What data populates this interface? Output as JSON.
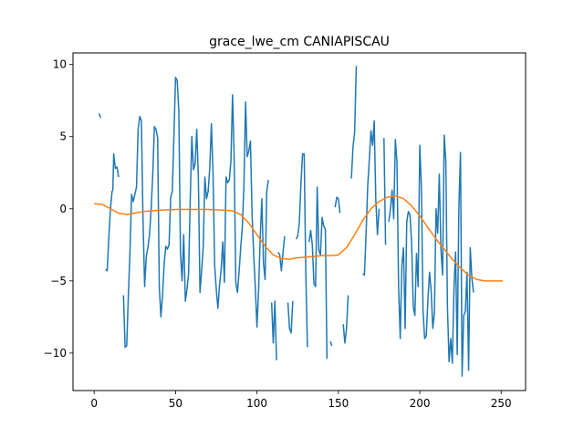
{
  "chart_data": {
    "type": "line",
    "title": "grace_lwe_cm CANIAPISCAU",
    "xlabel": "",
    "ylabel": "",
    "xlim": [
      -13,
      265
    ],
    "ylim": [
      -12.6,
      10.8
    ],
    "xticks": [
      0,
      50,
      100,
      150,
      200,
      250
    ],
    "yticks": [
      -10,
      -5,
      0,
      5,
      10
    ],
    "grid": false,
    "legend": "none",
    "series": [
      {
        "color": "#1f77b4",
        "points": [
          [
            3,
            6.6
          ],
          [
            4,
            6.3
          ],
          null,
          [
            7,
            -4.2
          ],
          [
            8,
            -4.3
          ],
          [
            9,
            -2.0
          ],
          [
            10,
            0.0
          ],
          [
            11,
            1.2
          ],
          [
            11.5,
            1.3
          ],
          [
            12,
            3.8
          ],
          [
            13,
            2.8
          ],
          [
            14,
            2.9
          ],
          [
            15,
            2.2
          ],
          null,
          [
            18,
            -6.0
          ],
          [
            19,
            -9.6
          ],
          [
            20,
            -9.5
          ],
          [
            21,
            -6.0
          ],
          [
            22,
            -3.0
          ],
          [
            23,
            1.0
          ],
          [
            24,
            0.5
          ],
          [
            25,
            1.0
          ],
          [
            26,
            1.5
          ],
          [
            27,
            5.5
          ],
          [
            28,
            6.4
          ],
          [
            29,
            6.1
          ],
          [
            30,
            -0.7
          ],
          [
            31,
            -5.4
          ],
          [
            32,
            -3.3
          ],
          [
            33,
            -2.7
          ],
          [
            34,
            -1.8
          ],
          [
            35,
            0.0
          ],
          [
            36,
            2.4
          ],
          [
            37,
            5.7
          ],
          [
            38,
            5.5
          ],
          [
            39,
            4.9
          ],
          [
            40,
            -5.4
          ],
          [
            41,
            -7.5
          ],
          [
            42,
            -6.0
          ],
          [
            43,
            -3.8
          ],
          [
            44,
            -2.6
          ],
          [
            45,
            -2.8
          ],
          [
            46,
            -2.5
          ],
          [
            47,
            0.8
          ],
          [
            48,
            1.2
          ],
          [
            49,
            5.1
          ],
          [
            50,
            9.1
          ],
          [
            51,
            8.9
          ],
          [
            52,
            6.8
          ],
          [
            53,
            -3.0
          ],
          [
            54,
            -5.0
          ],
          [
            55,
            -1.8
          ],
          [
            56,
            -6.4
          ],
          [
            57,
            -5.6
          ],
          [
            58,
            -4.5
          ],
          [
            59,
            0.6
          ],
          [
            60,
            5.0
          ],
          [
            61,
            2.7
          ],
          [
            62,
            3.1
          ],
          [
            63,
            5.5
          ],
          [
            64,
            2.2
          ],
          [
            65,
            -5.8
          ],
          [
            66,
            -4.3
          ],
          [
            67,
            -2.6
          ],
          [
            68,
            2.2
          ],
          [
            69,
            0.7
          ],
          [
            70,
            1.2
          ],
          [
            71,
            2.8
          ],
          [
            72,
            5.9
          ],
          [
            73,
            2.5
          ],
          [
            74,
            -3.9
          ],
          [
            75,
            -5.6
          ],
          [
            76,
            -6.9
          ],
          [
            77,
            -5.3
          ],
          [
            78,
            -4.2
          ],
          [
            79,
            -2.3
          ],
          [
            80,
            -5.1
          ],
          [
            81,
            2.2
          ],
          [
            82,
            1.8
          ],
          [
            83,
            2.0
          ],
          [
            84,
            3.3
          ],
          [
            85,
            7.9
          ],
          [
            86,
            3.5
          ],
          [
            87,
            -5.1
          ],
          [
            88,
            -5.8
          ],
          [
            89,
            -4.4
          ],
          [
            90,
            -2.7
          ],
          [
            91,
            -1.3
          ],
          [
            92,
            1.7
          ],
          [
            93,
            7.4
          ],
          [
            94,
            3.6
          ],
          [
            95,
            4.0
          ],
          [
            96,
            4.7
          ],
          [
            97,
            -0.4
          ],
          [
            98,
            -3.2
          ],
          [
            99,
            -5.5
          ],
          [
            100,
            -8.2
          ],
          [
            101,
            -5.6
          ],
          [
            102,
            -2.0
          ],
          [
            103,
            0.7
          ],
          [
            104,
            -3.8
          ],
          [
            105,
            -4.9
          ],
          [
            106,
            1.2
          ],
          [
            107,
            2.0
          ],
          null,
          [
            109,
            -6.5
          ],
          [
            110,
            -9.3
          ],
          [
            111,
            -6.4
          ],
          [
            112,
            -10.5
          ],
          null,
          [
            113,
            -3.0
          ],
          [
            114,
            -3.2
          ],
          [
            115,
            -4.3
          ],
          [
            116,
            -3.0
          ],
          [
            117,
            -1.9
          ],
          null,
          [
            119,
            -6.5
          ],
          [
            120,
            -8.3
          ],
          [
            121,
            -8.6
          ],
          [
            122,
            -6.4
          ],
          null,
          [
            124,
            -2.1
          ],
          [
            125,
            -1.9
          ],
          [
            126,
            -1.0
          ],
          [
            127,
            1.7
          ],
          [
            128,
            3.8
          ],
          [
            129,
            3.8
          ],
          [
            130,
            -4.5
          ],
          [
            131,
            -9.6
          ],
          null,
          [
            132,
            -2.3
          ],
          [
            133,
            -1.5
          ],
          [
            134,
            -2.5
          ],
          [
            135,
            -5.2
          ],
          [
            136,
            -5.4
          ],
          [
            137,
            1.5
          ],
          [
            138,
            -2.9
          ],
          [
            139,
            -3.2
          ],
          [
            140,
            -0.6
          ],
          [
            141,
            -1.2
          ],
          [
            142,
            -1.4
          ],
          [
            143,
            -10.4
          ],
          null,
          [
            145,
            -9.2
          ],
          [
            146,
            -9.5
          ],
          null,
          [
            148,
            0.1
          ],
          [
            149,
            0.8
          ],
          [
            150,
            0.7
          ],
          [
            151,
            -0.3
          ],
          null,
          [
            153,
            -8.0
          ],
          [
            154,
            -9.3
          ],
          [
            155,
            -8.3
          ],
          [
            156,
            -6.0
          ],
          null,
          [
            158,
            2.1
          ],
          [
            159,
            4.3
          ],
          [
            160,
            5.3
          ],
          [
            161,
            9.9
          ],
          null,
          [
            165,
            -4.5
          ],
          [
            166,
            -4.6
          ],
          [
            167,
            -1.8
          ],
          [
            168,
            1.5
          ],
          [
            169,
            3.4
          ],
          [
            170,
            5.4
          ],
          [
            171,
            4.4
          ],
          [
            172,
            6.1
          ],
          [
            173,
            0.6
          ],
          [
            174,
            -1.8
          ],
          [
            175,
            0.0
          ],
          null,
          [
            178,
            4.9
          ],
          [
            179,
            -2.5
          ],
          null,
          [
            181,
            -0.9
          ],
          [
            182,
            0.0
          ],
          [
            183,
            1.3
          ],
          [
            184,
            -0.7
          ],
          [
            185,
            4.8
          ],
          [
            186,
            3.2
          ],
          [
            187,
            -5.4
          ],
          [
            188,
            -9.0
          ],
          [
            189,
            -3.9
          ],
          [
            190,
            -2.7
          ],
          [
            191,
            -8.3
          ],
          [
            192,
            -0.9
          ],
          [
            193,
            -0.2
          ],
          [
            194,
            -0.4
          ],
          [
            195,
            -2.4
          ],
          [
            196,
            -6.8
          ],
          [
            197,
            -7.4
          ],
          [
            198,
            -3.1
          ],
          [
            199,
            -5.4
          ],
          [
            200,
            4.4
          ],
          [
            201,
            1.5
          ],
          [
            202,
            -7.1
          ],
          [
            203,
            -9.0
          ],
          [
            204,
            -8.8
          ],
          [
            205,
            -6.3
          ],
          [
            206,
            -4.4
          ],
          [
            207,
            -5.7
          ],
          [
            208,
            -8.3
          ],
          [
            209,
            -7.2
          ],
          [
            210,
            0.0
          ],
          [
            211,
            -1.7
          ],
          [
            212,
            2.4
          ],
          [
            213,
            -2.8
          ],
          [
            214,
            -4.6
          ],
          [
            215,
            5.1
          ],
          [
            216,
            3.3
          ],
          [
            217,
            -6.8
          ],
          [
            218,
            -10.6
          ],
          [
            219,
            -9.0
          ],
          [
            220,
            -10.7
          ],
          [
            221,
            -5.5
          ],
          [
            222,
            -3.0
          ],
          [
            223,
            -10.1
          ],
          [
            224,
            0.0
          ],
          [
            225,
            3.9
          ],
          [
            226,
            -11.6
          ],
          [
            227,
            -7.4
          ],
          [
            228,
            -7.1
          ],
          [
            229,
            -4.4
          ],
          [
            230,
            -11.2
          ],
          [
            231,
            -2.7
          ],
          [
            232,
            -4.8
          ],
          [
            233,
            -5.8
          ]
        ]
      },
      {
        "color": "#ff7f0e",
        "points": [
          [
            0,
            0.35
          ],
          [
            5,
            0.3
          ],
          [
            10,
            0.0
          ],
          [
            15,
            -0.3
          ],
          [
            20,
            -0.4
          ],
          [
            25,
            -0.3
          ],
          [
            30,
            -0.2
          ],
          [
            40,
            -0.1
          ],
          [
            50,
            -0.05
          ],
          [
            60,
            -0.05
          ],
          [
            70,
            -0.05
          ],
          [
            80,
            -0.1
          ],
          [
            85,
            -0.15
          ],
          [
            90,
            -0.4
          ],
          [
            95,
            -1.0
          ],
          [
            100,
            -1.8
          ],
          [
            105,
            -2.6
          ],
          [
            110,
            -3.2
          ],
          [
            115,
            -3.45
          ],
          [
            120,
            -3.5
          ],
          [
            125,
            -3.4
          ],
          [
            130,
            -3.35
          ],
          [
            135,
            -3.3
          ],
          [
            140,
            -3.25
          ],
          [
            145,
            -3.25
          ],
          [
            150,
            -3.2
          ],
          [
            155,
            -2.7
          ],
          [
            160,
            -1.8
          ],
          [
            165,
            -0.8
          ],
          [
            170,
            0.0
          ],
          [
            175,
            0.5
          ],
          [
            180,
            0.8
          ],
          [
            185,
            0.9
          ],
          [
            190,
            0.7
          ],
          [
            195,
            0.2
          ],
          [
            200,
            -0.5
          ],
          [
            205,
            -1.3
          ],
          [
            210,
            -2.1
          ],
          [
            215,
            -2.8
          ],
          [
            220,
            -3.5
          ],
          [
            225,
            -4.1
          ],
          [
            230,
            -4.6
          ],
          [
            235,
            -4.9
          ],
          [
            240,
            -5.0
          ],
          [
            245,
            -5.0
          ],
          [
            251,
            -5.0
          ]
        ]
      }
    ]
  }
}
